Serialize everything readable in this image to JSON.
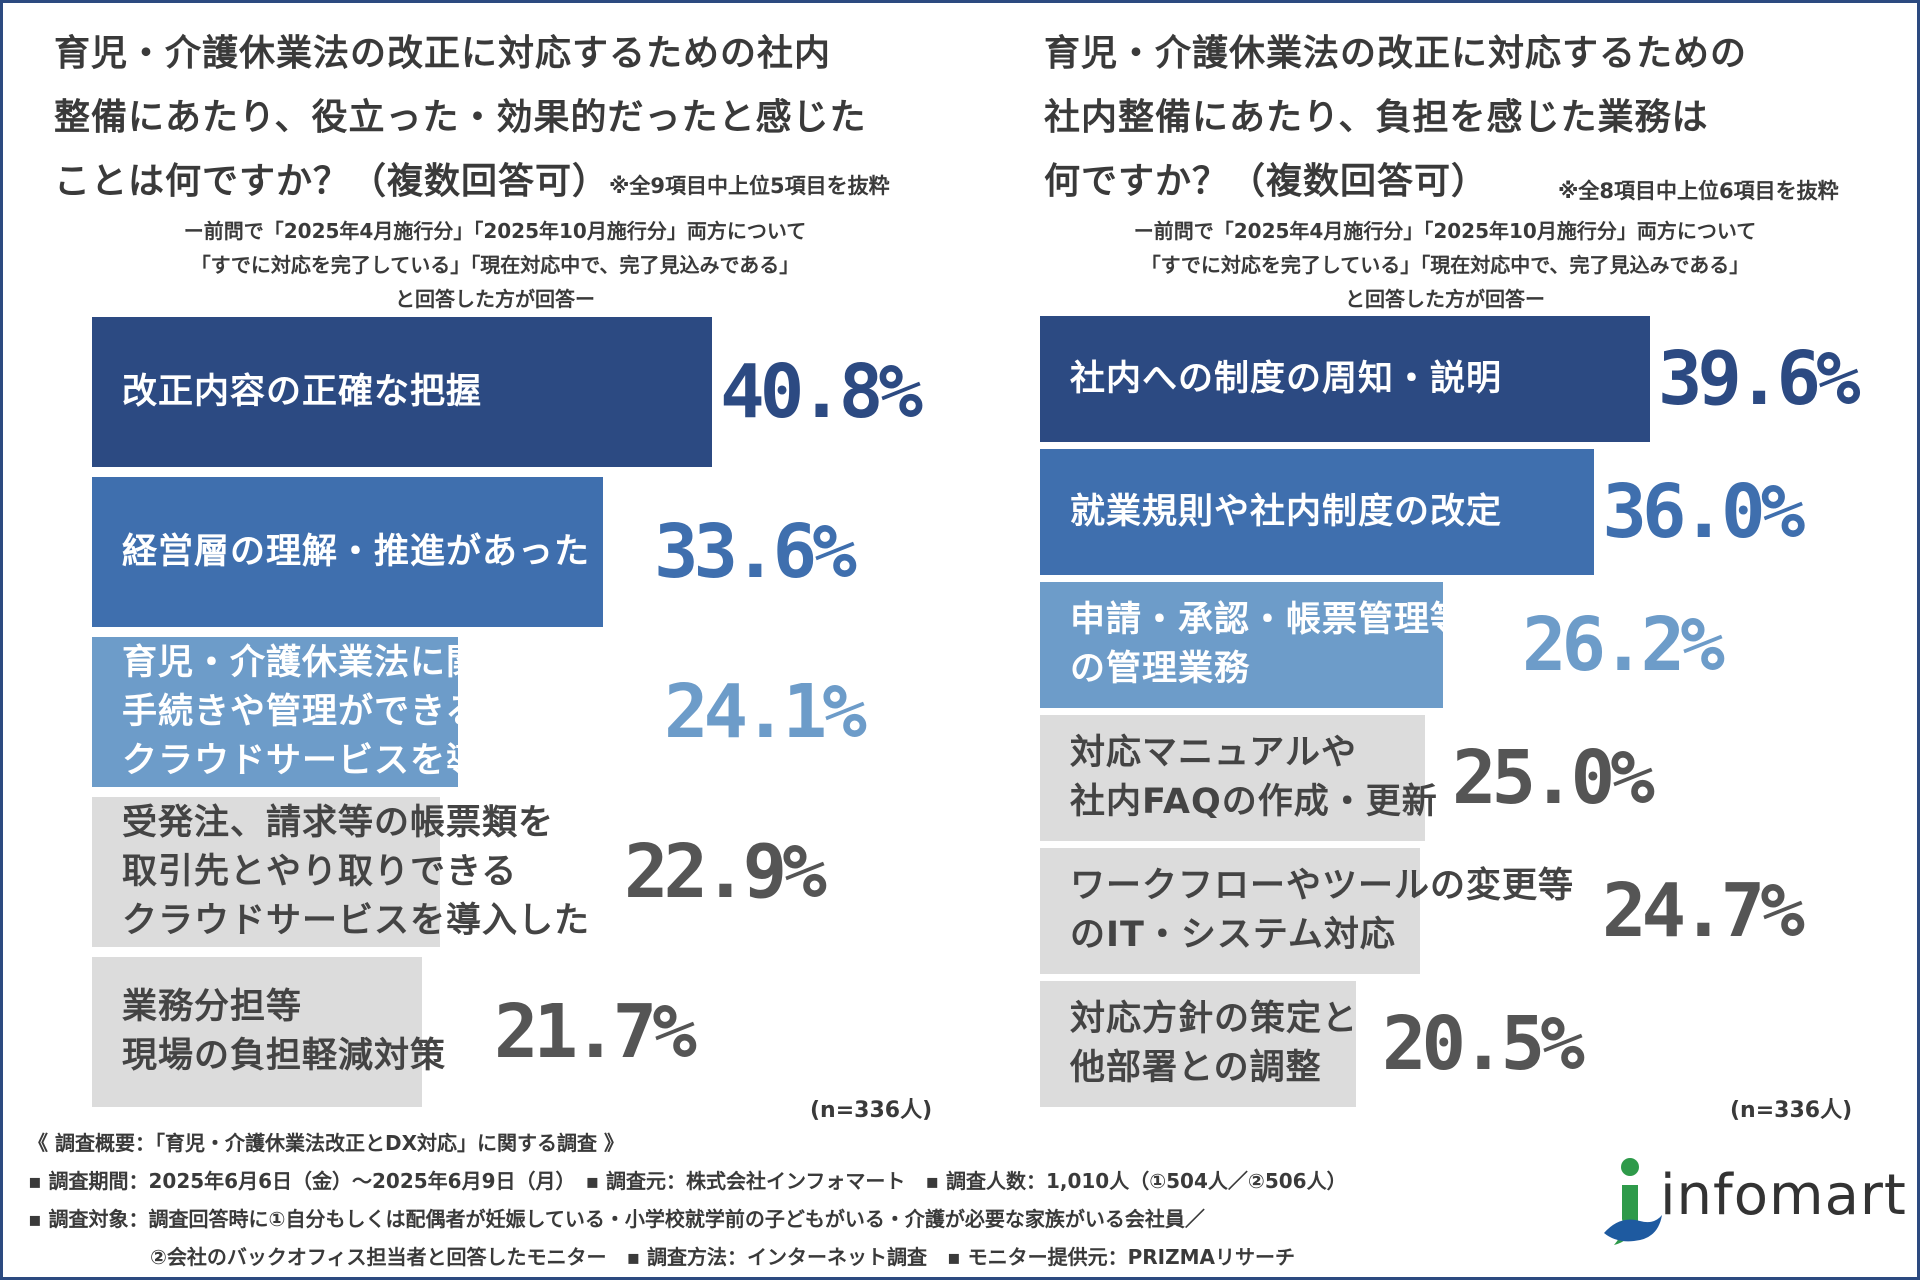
{
  "charts": {
    "left": {
      "title_line1": "育児・介護休業法の改正に対応するための社内",
      "title_line2": "整備にあたり、役立った・効果的だったと感じた",
      "title_line3": "ことは何ですか？（複数回答可）",
      "note": "※全9項目中上位5項目を抜粋",
      "subtitle_line1": "ー前問で「2025年4月施行分」「2025年10月施行分」両方について",
      "subtitle_line2": "「すでに対応を完了している」「現在対応中で、完了見込みである」",
      "subtitle_line3": "と回答した方が回答ー",
      "n_label": "(n=336人)"
    },
    "right": {
      "title_line1": "育児・介護休業法の改正に対応するための",
      "title_line2": "社内整備にあたり、負担を感じた業務は",
      "title_line3": "何ですか？（複数回答可）",
      "note": "※全8項目中上位6項目を抜粋",
      "subtitle_line1": "ー前問で「2025年4月施行分」「2025年10月施行分」両方について",
      "subtitle_line2": "「すでに対応を完了している」「現在対応中で、完了見込みである」",
      "subtitle_line3": "と回答した方が回答ー",
      "n_label": "(n=336人)"
    }
  },
  "chart_data": [
    {
      "type": "bar",
      "orientation": "horizontal",
      "title": "育児・介護休業法の改正に対応するための社内整備にあたり、役立った・効果的だったと感じたことは何ですか？（複数回答可）",
      "categories": [
        "改正内容の正確な把握",
        "経営層の理解・推進があった",
        "育児・介護休業法に関する\n手続きや管理ができる\nクラウドサービスを導入した",
        "受発注、請求等の帳票類を\n取引先とやり取りできる\nクラウドサービスを導入した",
        "業務分担等\n現場の負担軽減対策"
      ],
      "values": [
        40.8,
        33.6,
        24.1,
        22.9,
        21.7
      ],
      "value_labels": [
        "40.8%",
        "33.6%",
        "24.1%",
        "22.9%",
        "21.7%"
      ],
      "unit": "%",
      "colors": [
        "#2c4a82",
        "#3f6fae",
        "#6d9cc9",
        "#dcdcdc",
        "#dcdcdc"
      ],
      "value_colors": [
        "#2c4a82",
        "#3f6fae",
        "#6d9cc9",
        "#555555",
        "#555555"
      ],
      "n": "n=336人"
    },
    {
      "type": "bar",
      "orientation": "horizontal",
      "title": "育児・介護休業法の改正に対応するための社内整備にあたり、負担を感じた業務は何ですか？（複数回答可）",
      "categories": [
        "社内への制度の周知・説明",
        "就業規則や社内制度の改定",
        "申請・承認・帳票管理等\nの管理業務",
        "対応マニュアルや\n社内FAQの作成・更新",
        "ワークフローやツールの変更等\nのIT・システム対応",
        "対応方針の策定と\n他部署との調整"
      ],
      "values": [
        39.6,
        36.0,
        26.2,
        25.0,
        24.7,
        20.5
      ],
      "value_labels": [
        "39.6%",
        "36.0%",
        "26.2%",
        "25.0%",
        "24.7%",
        "20.5%"
      ],
      "unit": "%",
      "colors": [
        "#2c4a82",
        "#3f6fae",
        "#6d9cc9",
        "#dcdcdc",
        "#dcdcdc",
        "#dcdcdc"
      ],
      "value_colors": [
        "#2c4a82",
        "#3f6fae",
        "#6d9cc9",
        "#555555",
        "#555555",
        "#555555"
      ],
      "n": "n=336人"
    }
  ],
  "footer": {
    "heading": "《 調査概要：「育児・介護休業法改正とDX対応」に関する調査 》",
    "line1": "▪ 調査期間：2025年6月6日（金）～2025年6月9日（月）　▪ 調査元：株式会社インフォマート　▪ 調査人数：1,010人（①504人／②506人）",
    "line2": "▪ 調査対象：調査回答時に①自分もしくは配偶者が妊娠している・小学校就学前の子どもがいる・介護が必要な家族がいる会社員／",
    "line3": "②会社のバックオフィス担当者と回答したモニター　▪ 調査方法：インターネット調査　▪ モニター提供元：PRIZMAリサーチ"
  },
  "logo": {
    "text": "infomart",
    "color_green": "#2e9a4a",
    "color_blue": "#1e5aa0"
  }
}
